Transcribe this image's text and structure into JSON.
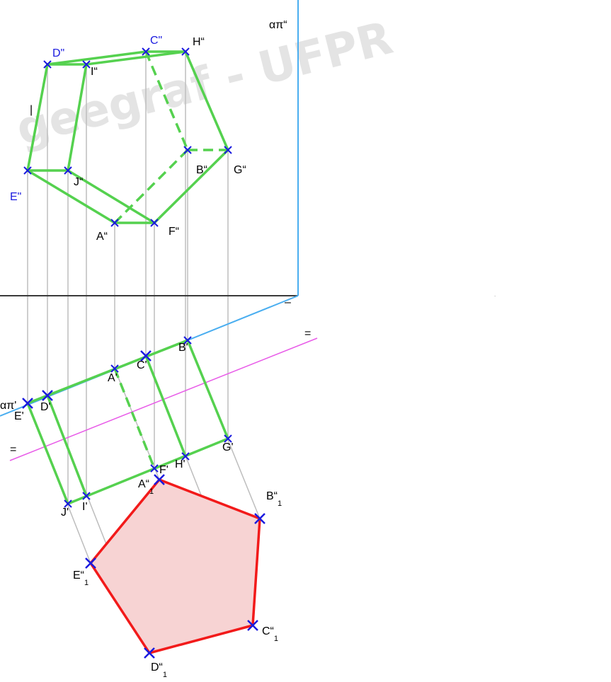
{
  "watermark": "geegraf - UFPR",
  "colors": {
    "projection_green": "#55d14f",
    "true_shape_red": "#f21a1a",
    "true_shape_fill": "#f7d3d3",
    "point_marker": "#1a1adf",
    "frontal_plane_line": "#4aaef0",
    "new_axis_line": "#e85be8",
    "ground_line": "#3a3a3a",
    "projector_gray": "#bdbdbd"
  },
  "labels": {
    "alpha_pi_2": "απ“",
    "alpha_pi_1": "απ'",
    "mark_ground": "–",
    "mark_new_axis_a": "=",
    "mark_new_axis_b": "=",
    "mark_left": "|",
    "dot": "."
  },
  "points_front": {
    "C": "C\"",
    "D": "D\"",
    "H": "H“",
    "I": "I“",
    "E": "E\"",
    "J": "J“",
    "B": "B“",
    "G": "G“",
    "A": "A“",
    "F": "F“"
  },
  "points_top": {
    "B": "B'",
    "C": "C'",
    "A": "A'",
    "D": "D'",
    "E": "E'",
    "G": "G'",
    "H": "H'",
    "F": "F'",
    "J": "J'",
    "I": "I'"
  },
  "points_true": {
    "A": "A“",
    "B": "B“",
    "C": "C“",
    "D": "D“",
    "E": "E“",
    "subscript": "1"
  }
}
